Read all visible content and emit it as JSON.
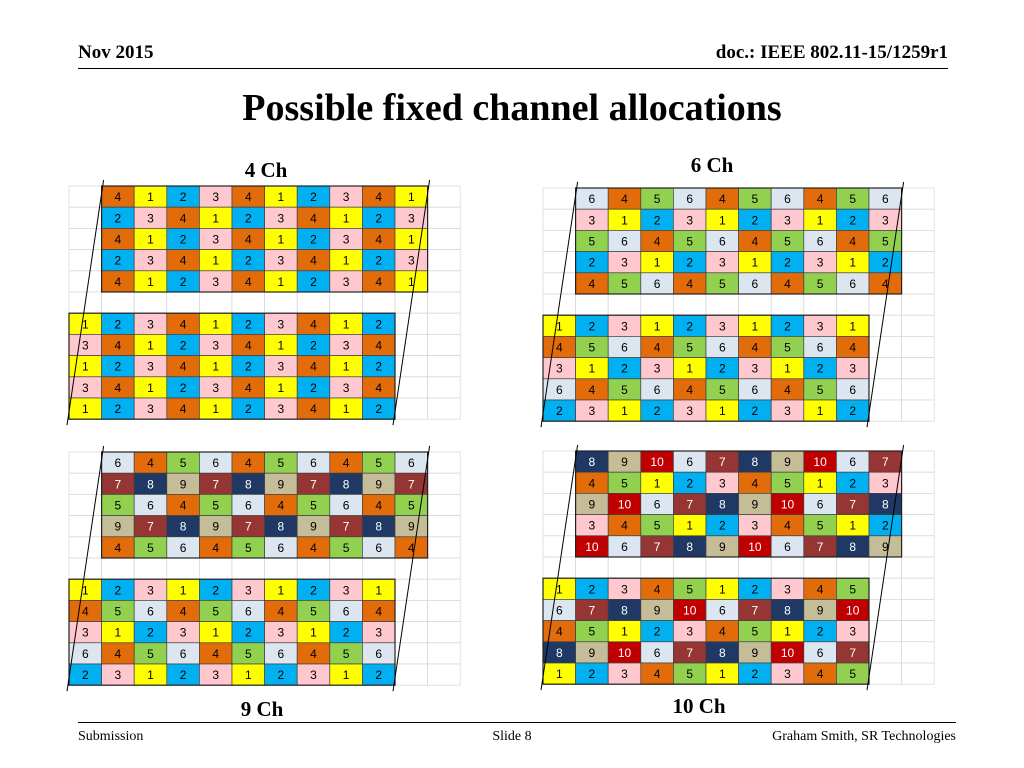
{
  "header": {
    "date": "Nov 2015",
    "doc": "doc.: IEEE 802.11-15/1259r1"
  },
  "title": "Possible fixed channel allocations",
  "footer": {
    "left": "Submission",
    "center": "Slide 8",
    "right": "Graham Smith, SR Technologies"
  },
  "colors": {
    "1": "#FFFF00",
    "2": "#00B0F0",
    "3": "#FFC7CE",
    "4": "#E26B0A",
    "5": "#92D050",
    "6": "#DCE6F1",
    "7": "#963634",
    "8": "#1F3864",
    "9": "#C4BD97",
    "10": "#C00000"
  },
  "light_text_values": [
    "7",
    "8",
    "10"
  ],
  "panels": [
    {
      "label": "4 Ch",
      "top_block": [
        [
          "4",
          "1",
          "2",
          "3",
          "4",
          "1",
          "2",
          "3",
          "4",
          "1"
        ],
        [
          "2",
          "3",
          "4",
          "1",
          "2",
          "3",
          "4",
          "1",
          "2",
          "3"
        ],
        [
          "4",
          "1",
          "2",
          "3",
          "4",
          "1",
          "2",
          "3",
          "4",
          "1"
        ],
        [
          "2",
          "3",
          "4",
          "1",
          "2",
          "3",
          "4",
          "1",
          "2",
          "3"
        ],
        [
          "4",
          "1",
          "2",
          "3",
          "4",
          "1",
          "2",
          "3",
          "4",
          "1"
        ]
      ],
      "bottom_block": [
        [
          "1",
          "2",
          "3",
          "4",
          "1",
          "2",
          "3",
          "4",
          "1",
          "2"
        ],
        [
          "3",
          "4",
          "1",
          "2",
          "3",
          "4",
          "1",
          "2",
          "3",
          "4"
        ],
        [
          "1",
          "2",
          "3",
          "4",
          "1",
          "2",
          "3",
          "4",
          "1",
          "2"
        ],
        [
          "3",
          "4",
          "1",
          "2",
          "3",
          "4",
          "1",
          "2",
          "3",
          "4"
        ],
        [
          "1",
          "2",
          "3",
          "4",
          "1",
          "2",
          "3",
          "4",
          "1",
          "2"
        ]
      ]
    },
    {
      "label": "6 Ch",
      "top_block": [
        [
          "6",
          "4",
          "5",
          "6",
          "4",
          "5",
          "6",
          "4",
          "5",
          "6"
        ],
        [
          "3",
          "1",
          "2",
          "3",
          "1",
          "2",
          "3",
          "1",
          "2",
          "3"
        ],
        [
          "5",
          "6",
          "4",
          "5",
          "6",
          "4",
          "5",
          "6",
          "4",
          "5"
        ],
        [
          "2",
          "3",
          "1",
          "2",
          "3",
          "1",
          "2",
          "3",
          "1",
          "2"
        ],
        [
          "4",
          "5",
          "6",
          "4",
          "5",
          "6",
          "4",
          "5",
          "6",
          "4"
        ]
      ],
      "bottom_block": [
        [
          "1",
          "2",
          "3",
          "1",
          "2",
          "3",
          "1",
          "2",
          "3",
          "1"
        ],
        [
          "4",
          "5",
          "6",
          "4",
          "5",
          "6",
          "4",
          "5",
          "6",
          "4"
        ],
        [
          "3",
          "1",
          "2",
          "3",
          "1",
          "2",
          "3",
          "1",
          "2",
          "3"
        ],
        [
          "6",
          "4",
          "5",
          "6",
          "4",
          "5",
          "6",
          "4",
          "5",
          "6"
        ],
        [
          "2",
          "3",
          "1",
          "2",
          "3",
          "1",
          "2",
          "3",
          "1",
          "2"
        ]
      ]
    },
    {
      "label": "9 Ch",
      "top_block": [
        [
          "6",
          "4",
          "5",
          "6",
          "4",
          "5",
          "6",
          "4",
          "5",
          "6"
        ],
        [
          "7",
          "8",
          "9",
          "7",
          "8",
          "9",
          "7",
          "8",
          "9",
          "7"
        ],
        [
          "5",
          "6",
          "4",
          "5",
          "6",
          "4",
          "5",
          "6",
          "4",
          "5"
        ],
        [
          "9",
          "7",
          "8",
          "9",
          "7",
          "8",
          "9",
          "7",
          "8",
          "9"
        ],
        [
          "4",
          "5",
          "6",
          "4",
          "5",
          "6",
          "4",
          "5",
          "6",
          "4"
        ]
      ],
      "bottom_block": [
        [
          "1",
          "2",
          "3",
          "1",
          "2",
          "3",
          "1",
          "2",
          "3",
          "1"
        ],
        [
          "4",
          "5",
          "6",
          "4",
          "5",
          "6",
          "4",
          "5",
          "6",
          "4"
        ],
        [
          "3",
          "1",
          "2",
          "3",
          "1",
          "2",
          "3",
          "1",
          "2",
          "3"
        ],
        [
          "6",
          "4",
          "5",
          "6",
          "4",
          "5",
          "6",
          "4",
          "5",
          "6"
        ],
        [
          "2",
          "3",
          "1",
          "2",
          "3",
          "1",
          "2",
          "3",
          "1",
          "2"
        ]
      ]
    },
    {
      "label": "10 Ch",
      "top_block": [
        [
          "8",
          "9",
          "10",
          "6",
          "7",
          "8",
          "9",
          "10",
          "6",
          "7"
        ],
        [
          "4",
          "5",
          "1",
          "2",
          "3",
          "4",
          "5",
          "1",
          "2",
          "3"
        ],
        [
          "9",
          "10",
          "6",
          "7",
          "8",
          "9",
          "10",
          "6",
          "7",
          "8"
        ],
        [
          "3",
          "4",
          "5",
          "1",
          "2",
          "3",
          "4",
          "5",
          "1",
          "2"
        ],
        [
          "10",
          "6",
          "7",
          "8",
          "9",
          "10",
          "6",
          "7",
          "8",
          "9"
        ]
      ],
      "bottom_block": [
        [
          "1",
          "2",
          "3",
          "4",
          "5",
          "1",
          "2",
          "3",
          "4",
          "5"
        ],
        [
          "6",
          "7",
          "8",
          "9",
          "10",
          "6",
          "7",
          "8",
          "9",
          "10"
        ],
        [
          "4",
          "5",
          "1",
          "2",
          "3",
          "4",
          "5",
          "1",
          "2",
          "3"
        ],
        [
          "8",
          "9",
          "10",
          "6",
          "7",
          "8",
          "9",
          "10",
          "6",
          "7"
        ],
        [
          "1",
          "2",
          "3",
          "4",
          "5",
          "1",
          "2",
          "3",
          "4",
          "5"
        ]
      ]
    }
  ]
}
